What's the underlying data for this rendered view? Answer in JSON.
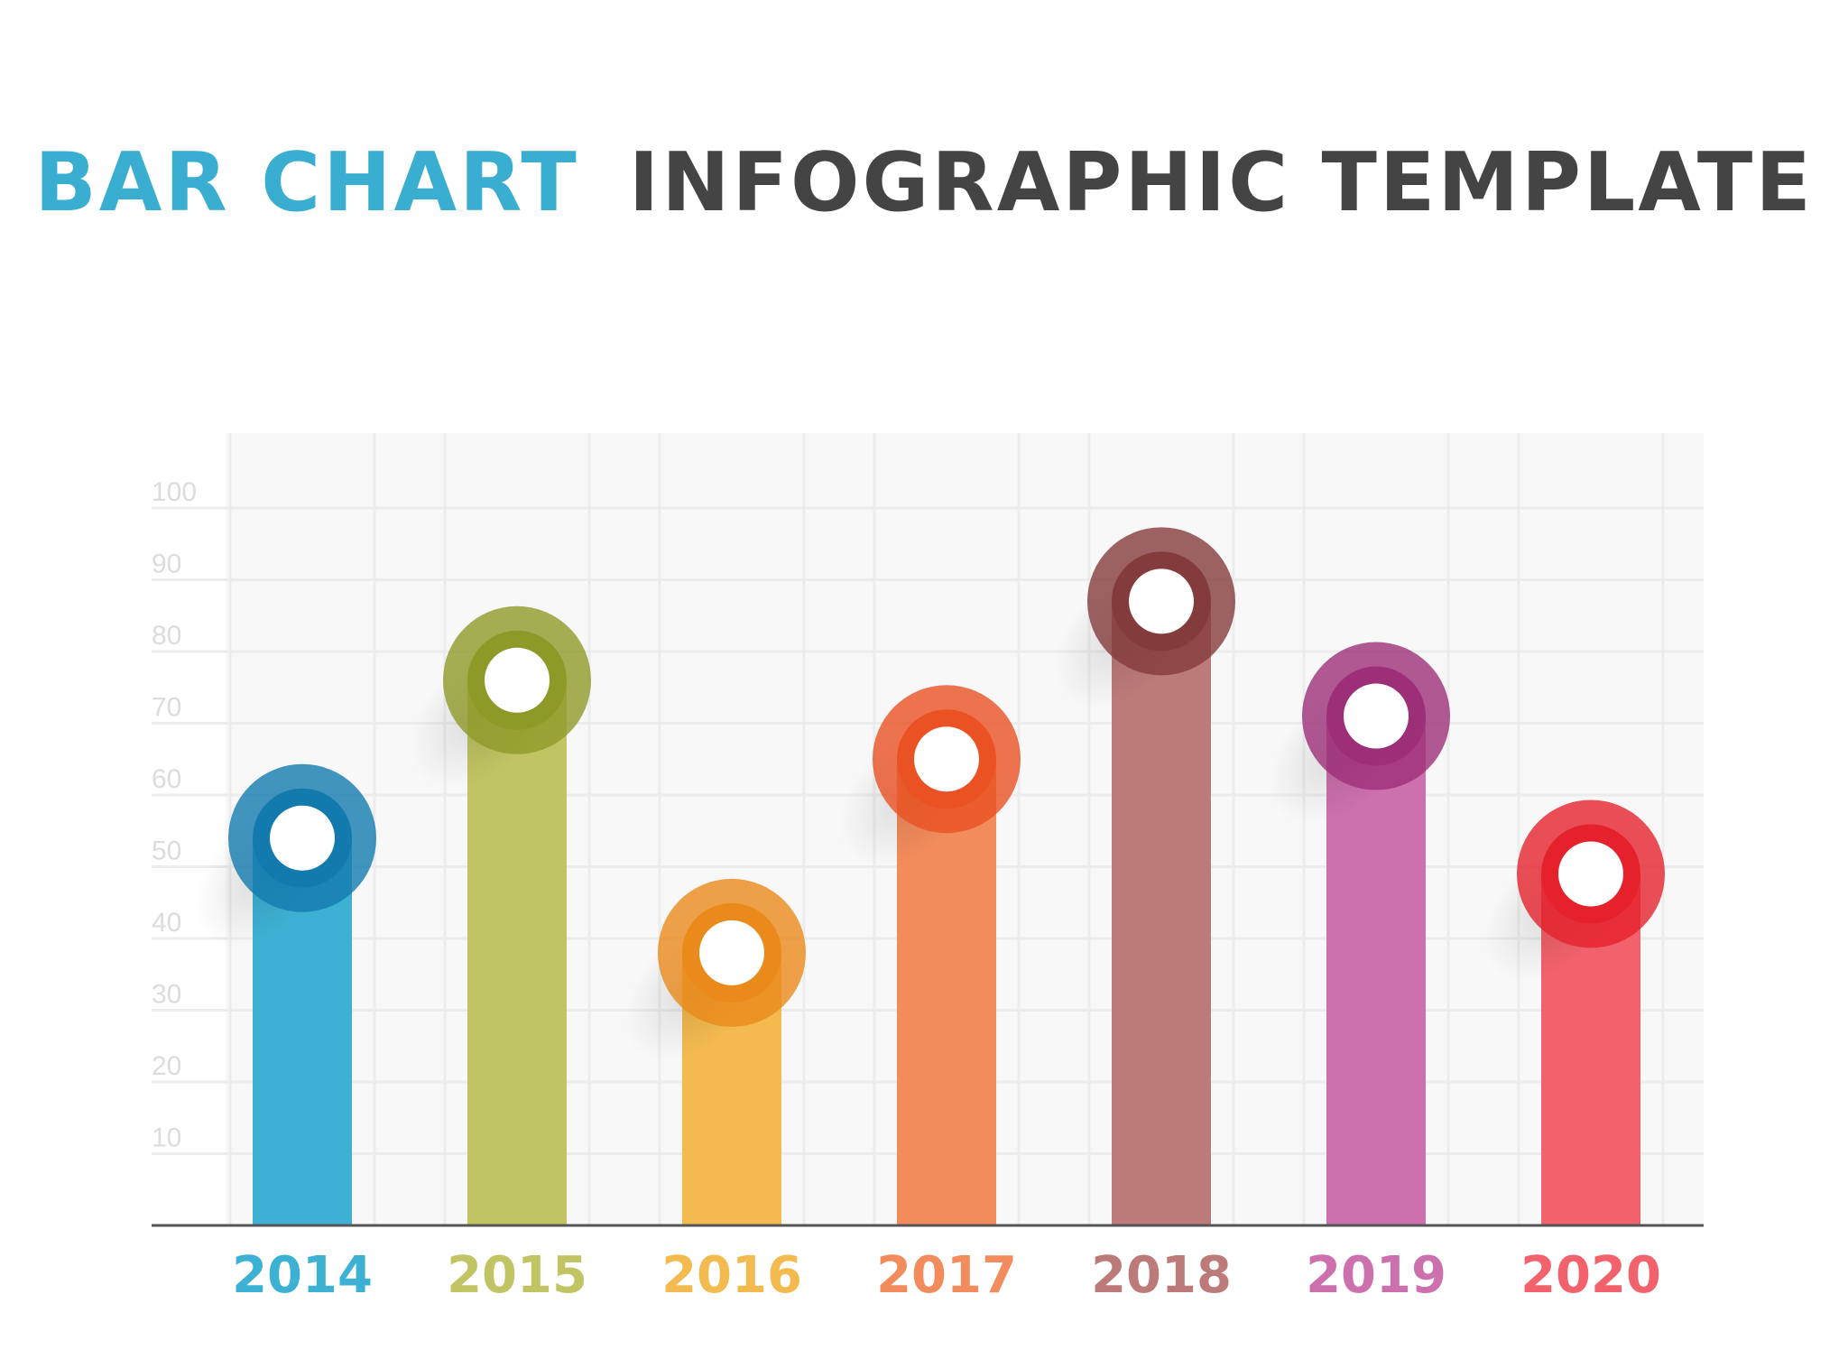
{
  "title": {
    "part1": "BAR CHART",
    "part2": "INFOGRAPHIC TEMPLATE"
  },
  "colors": {
    "title_accent": "#3aaed0",
    "title_main": "#444444",
    "grid": "#ececec",
    "plot_bg": "#f8f8f8",
    "axis": "#555555",
    "tick": "#dcdcdc"
  },
  "chart_data": {
    "type": "bar",
    "categories": [
      "2014",
      "2015",
      "2016",
      "2017",
      "2018",
      "2019",
      "2020"
    ],
    "values": [
      54,
      76,
      38,
      65,
      87,
      71,
      49
    ],
    "yticks": [
      10,
      20,
      30,
      40,
      50,
      60,
      70,
      80,
      90,
      100
    ],
    "ylim": [
      0,
      100
    ],
    "grid": true,
    "bar_colors": [
      "#3db1d4",
      "#c0c463",
      "#f3ba4f",
      "#f28c5c",
      "#bc7b79",
      "#cc70ae",
      "#f2626c"
    ],
    "marker_colors": [
      "#137aae",
      "#8e9a28",
      "#ea8a1a",
      "#ea5123",
      "#843b3b",
      "#9d2f78",
      "#e5222c"
    ]
  }
}
